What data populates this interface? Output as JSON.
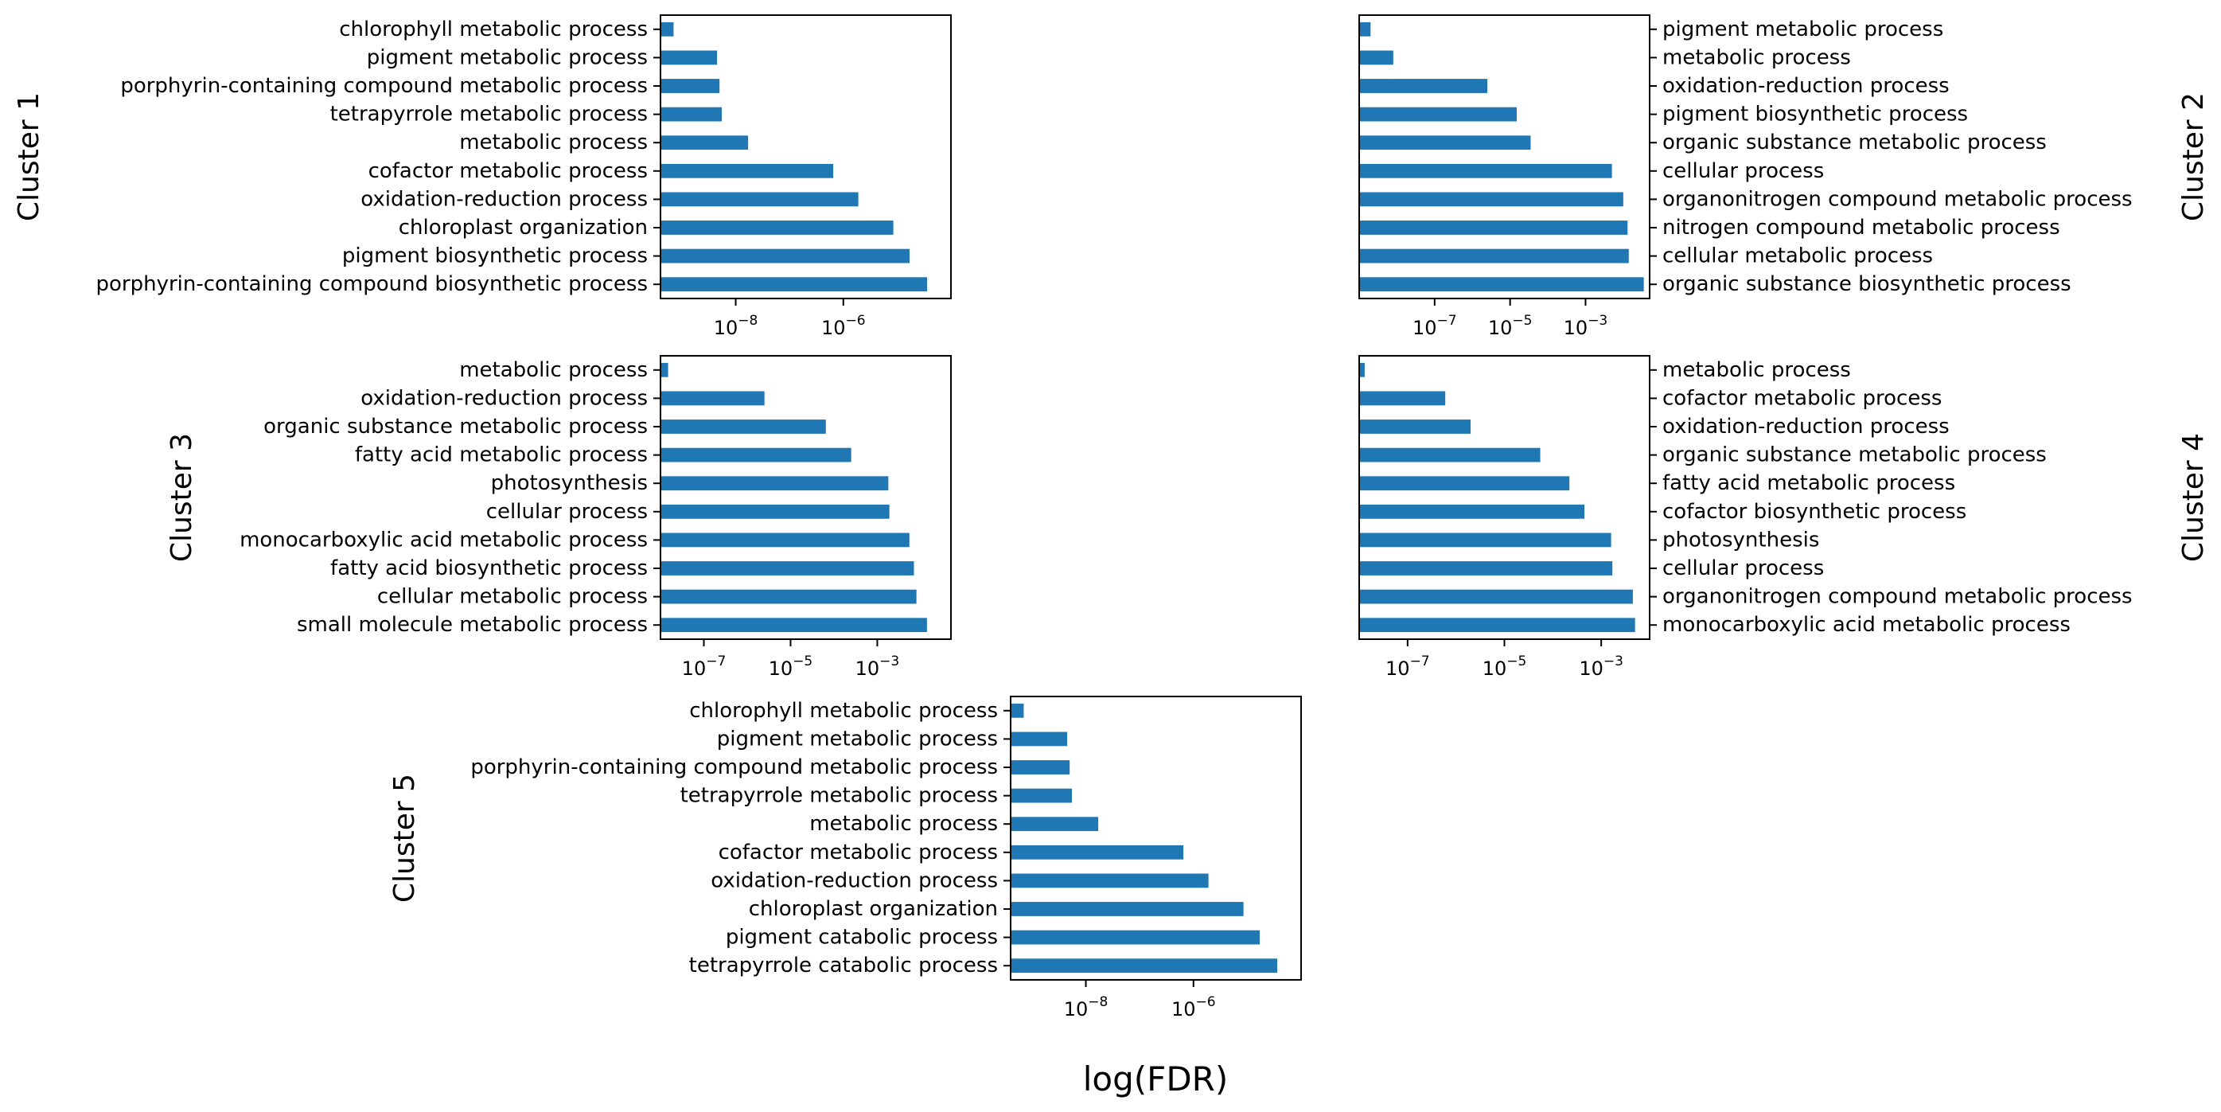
{
  "figure": {
    "xlabel": "log(FDR)"
  },
  "colors": {
    "bar": "#1f77b4"
  },
  "chart_data": [
    {
      "type": "bar",
      "orientation": "horizontal",
      "title": "Cluster 1",
      "label_side": "left",
      "xscale": "log",
      "xlim": [
        4e-10,
        0.0001
      ],
      "xticks": [
        1e-08,
        1e-06
      ],
      "xtick_labels": [
        {
          "base": "10",
          "exp": "−8"
        },
        {
          "base": "10",
          "exp": "−6"
        }
      ],
      "categories": [
        "chlorophyll metabolic process",
        "pigment metabolic process",
        "porphyrin-containing compound metabolic process",
        "tetrapyrrole metabolic process",
        "metabolic process",
        "cofactor metabolic process",
        "oxidation-reduction process",
        "chloroplast organization",
        "pigment biosynthetic process",
        "porphyrin-containing compound biosynthetic process"
      ],
      "values": [
        7e-10,
        4.5e-09,
        5e-09,
        5.5e-09,
        1.7e-08,
        6.5e-07,
        1.9e-06,
        8.5e-06,
        1.7e-05,
        3.6e-05
      ]
    },
    {
      "type": "bar",
      "orientation": "horizontal",
      "title": "Cluster 2",
      "label_side": "right",
      "xscale": "log",
      "xlim": [
        1e-09,
        0.05
      ],
      "xticks": [
        1e-07,
        1e-05,
        0.001
      ],
      "xtick_labels": [
        {
          "base": "10",
          "exp": "−7"
        },
        {
          "base": "10",
          "exp": "−5"
        },
        {
          "base": "10",
          "exp": "−3"
        }
      ],
      "categories": [
        "pigment metabolic process",
        "metabolic process",
        "oxidation-reduction process",
        "pigment biosynthetic process",
        "organic substance metabolic process",
        "cellular process",
        "organonitrogen compound metabolic process",
        "nitrogen compound metabolic process",
        "cellular metabolic process",
        "organic substance biosynthetic process"
      ],
      "values": [
        2e-09,
        8e-09,
        2.5e-06,
        1.5e-05,
        3.5e-05,
        0.005,
        0.01,
        0.013,
        0.014,
        0.035
      ]
    },
    {
      "type": "bar",
      "orientation": "horizontal",
      "title": "Cluster 3",
      "label_side": "left",
      "xscale": "log",
      "xlim": [
        1e-08,
        0.05
      ],
      "xticks": [
        1e-07,
        1e-05,
        0.001
      ],
      "xtick_labels": [
        {
          "base": "10",
          "exp": "−7"
        },
        {
          "base": "10",
          "exp": "−5"
        },
        {
          "base": "10",
          "exp": "−3"
        }
      ],
      "categories": [
        "metabolic process",
        "oxidation-reduction process",
        "organic substance metabolic process",
        "fatty acid metabolic process",
        "photosynthesis",
        "cellular process",
        "monocarboxylic acid metabolic process",
        "fatty acid biosynthetic process",
        "cellular metabolic process",
        "small molecule metabolic process"
      ],
      "values": [
        1.5e-08,
        2.5e-06,
        6.5e-05,
        0.00025,
        0.0018,
        0.0019,
        0.0055,
        0.007,
        0.008,
        0.014
      ]
    },
    {
      "type": "bar",
      "orientation": "horizontal",
      "title": "Cluster 4",
      "label_side": "right",
      "xscale": "log",
      "xlim": [
        1e-08,
        0.01
      ],
      "xticks": [
        1e-07,
        1e-05,
        0.001
      ],
      "xtick_labels": [
        {
          "base": "10",
          "exp": "−7"
        },
        {
          "base": "10",
          "exp": "−5"
        },
        {
          "base": "10",
          "exp": "−3"
        }
      ],
      "categories": [
        "metabolic process",
        "cofactor metabolic process",
        "oxidation-reduction process",
        "organic substance metabolic process",
        "fatty acid metabolic process",
        "cofactor biosynthetic process",
        "photosynthesis",
        "cellular process",
        "organonitrogen compound metabolic process",
        "monocarboxylic acid metabolic process"
      ],
      "values": [
        1.3e-08,
        6e-07,
        2e-06,
        5.5e-05,
        0.00022,
        0.00045,
        0.0016,
        0.0017,
        0.0045,
        0.005
      ]
    },
    {
      "type": "bar",
      "orientation": "horizontal",
      "title": "Cluster 5",
      "label_side": "left",
      "xscale": "log",
      "xlim": [
        4e-10,
        0.0001
      ],
      "xticks": [
        1e-08,
        1e-06
      ],
      "xtick_labels": [
        {
          "base": "10",
          "exp": "−8"
        },
        {
          "base": "10",
          "exp": "−6"
        }
      ],
      "categories": [
        "chlorophyll metabolic process",
        "pigment metabolic process",
        "porphyrin-containing compound metabolic process",
        "tetrapyrrole metabolic process",
        "metabolic process",
        "cofactor metabolic process",
        "oxidation-reduction process",
        "chloroplast organization",
        "pigment catabolic process",
        "tetrapyrrole catabolic process"
      ],
      "values": [
        7e-10,
        4.5e-09,
        5e-09,
        5.5e-09,
        1.7e-08,
        6.5e-07,
        1.9e-06,
        8.5e-06,
        1.7e-05,
        3.6e-05
      ]
    }
  ]
}
